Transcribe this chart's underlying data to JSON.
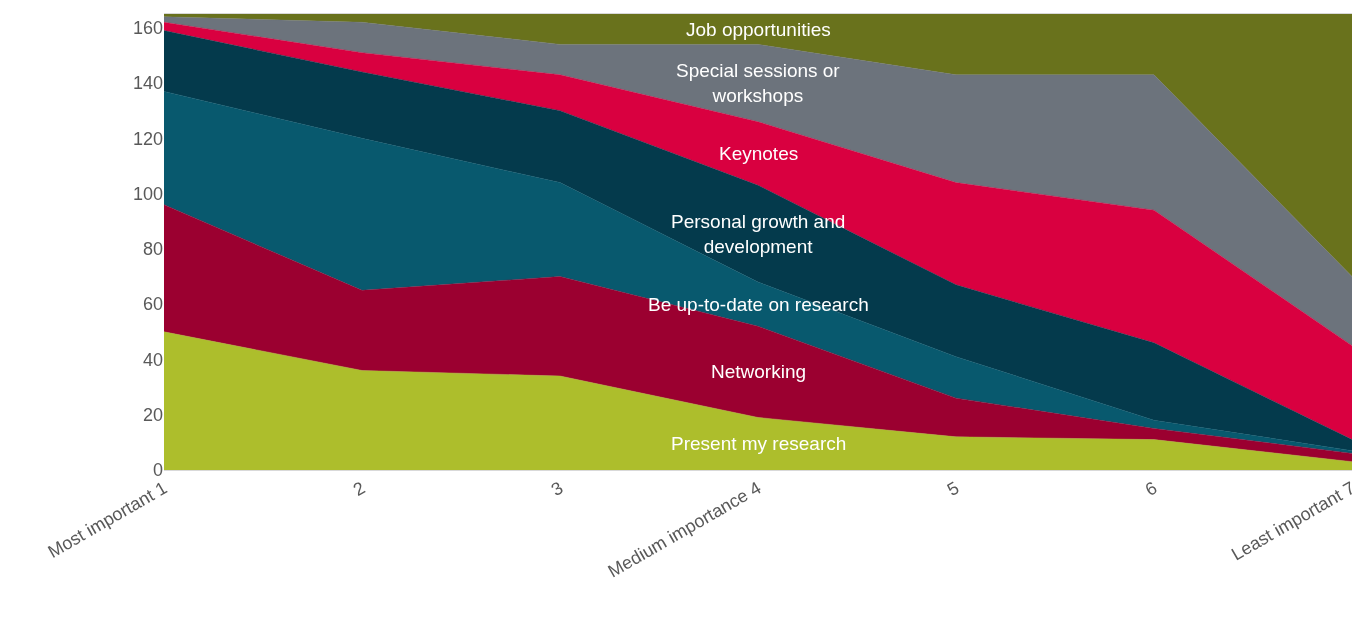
{
  "chart_data": {
    "type": "area",
    "stacked": true,
    "categories": [
      "Most important 1",
      "2",
      "3",
      "Medium importance 4",
      "5",
      "6",
      "Least important 7"
    ],
    "series": [
      {
        "name": "Present my research",
        "color": "#adbe2c",
        "values": [
          50,
          36,
          34,
          19,
          12,
          11,
          3
        ]
      },
      {
        "name": "Networking",
        "color": "#9b0030",
        "values": [
          46,
          29,
          36,
          33,
          14,
          4,
          3
        ]
      },
      {
        "name": "Be up-to-date on research",
        "color": "#08596e",
        "values": [
          41,
          55,
          34,
          16,
          15,
          3,
          1
        ]
      },
      {
        "name": "Personal growth and development",
        "color": "#043a4c",
        "values": [
          22,
          24,
          26,
          35,
          26,
          28,
          4
        ]
      },
      {
        "name": "Keynotes",
        "color": "#d90040",
        "values": [
          3,
          7,
          13,
          23,
          37,
          48,
          34
        ]
      },
      {
        "name": "Special sessions or workshops",
        "color": "#6c737c",
        "values": [
          2,
          11,
          11,
          28,
          39,
          49,
          25
        ]
      },
      {
        "name": "Job opportunities",
        "color": "#69721c",
        "values": [
          1,
          3,
          11,
          11,
          22,
          22,
          95
        ]
      }
    ],
    "ylim": [
      0,
      165
    ],
    "yticks": [
      0,
      20,
      40,
      60,
      80,
      100,
      120,
      140,
      160
    ]
  }
}
